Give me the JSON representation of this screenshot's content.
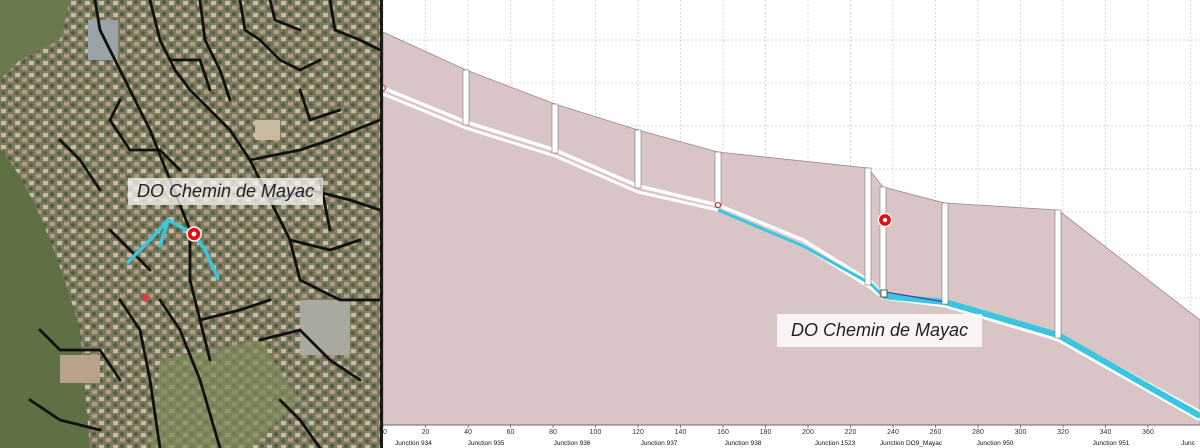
{
  "map": {
    "label": "DO Chemin de Mayac",
    "marker_icon": "red-circle-marker",
    "network_color": "#111111",
    "highlight_color": "#38c6e0",
    "marker_color": "#e01010"
  },
  "profile": {
    "label": "DO Chemin de Mayac",
    "ground_fill": "#d9c5c5",
    "pipe_color": "#38c6e0",
    "grid_color": "#c8c8c8",
    "x_ticks": [
      "0",
      "20",
      "40",
      "60",
      "80",
      "100",
      "120",
      "140",
      "160",
      "180",
      "200",
      "220",
      "240",
      "260",
      "280",
      "300",
      "320",
      "340",
      "360"
    ],
    "junctions": [
      "Junction 934",
      "Junction 935",
      "Junction 936",
      "Junction 937",
      "Junction 938",
      "Junction 1523",
      "Junction DO9_Mayac",
      "Junction 950",
      "Junction 951",
      "Junc"
    ]
  }
}
